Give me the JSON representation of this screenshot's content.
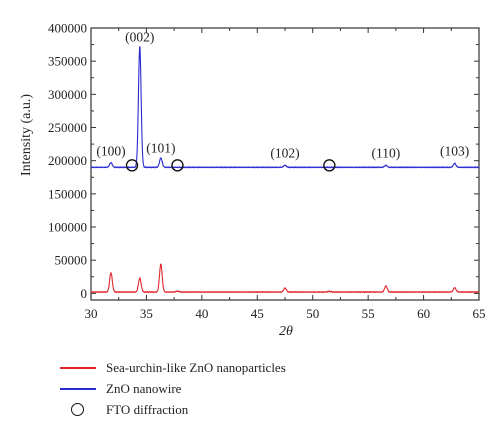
{
  "colors": {
    "red_series": "#e0262b",
    "blue_series": "#2a2ad0",
    "frame": "#333333",
    "marker": "#111111"
  },
  "chart_data": {
    "type": "line",
    "xlabel": "2θ",
    "ylabel": "Intensity (a.u.)",
    "xlim": [
      30,
      65
    ],
    "ylim": [
      -10000,
      400000
    ],
    "x_ticks": [
      30,
      35,
      40,
      45,
      50,
      55,
      60,
      65
    ],
    "y_ticks": [
      0,
      50000,
      100000,
      150000,
      200000,
      250000,
      300000,
      350000,
      400000
    ],
    "grid": false,
    "series": [
      {
        "name": "Sea-urchin-like ZnO nanoparticles",
        "color": "#e0262b",
        "baseline": 2000,
        "peaks": [
          {
            "x": 31.8,
            "y": 31000
          },
          {
            "x": 34.4,
            "y": 23000
          },
          {
            "x": 36.3,
            "y": 44000
          },
          {
            "x": 37.8,
            "y": 3500
          },
          {
            "x": 47.5,
            "y": 8000
          },
          {
            "x": 51.5,
            "y": 3200
          },
          {
            "x": 56.6,
            "y": 11000
          },
          {
            "x": 62.8,
            "y": 8500
          }
        ]
      },
      {
        "name": "ZnO nanowire",
        "color": "#2a2ad0",
        "baseline": 190000,
        "peaks": [
          {
            "x": 31.8,
            "y": 197000
          },
          {
            "x": 34.4,
            "y": 372000
          },
          {
            "x": 36.3,
            "y": 204000
          },
          {
            "x": 47.5,
            "y": 193000
          },
          {
            "x": 56.6,
            "y": 193000
          },
          {
            "x": 62.8,
            "y": 196000
          }
        ]
      }
    ],
    "annotations": [
      {
        "text": "(100)",
        "x": 31.8,
        "y": 208000
      },
      {
        "text": "(002)",
        "x": 34.4,
        "y": 380000
      },
      {
        "text": "(101)",
        "x": 36.3,
        "y": 212000
      },
      {
        "text": "(102)",
        "x": 47.5,
        "y": 205000
      },
      {
        "text": "(110)",
        "x": 56.6,
        "y": 205000
      },
      {
        "text": "(103)",
        "x": 62.8,
        "y": 208000
      }
    ],
    "fto_markers": [
      {
        "x": 33.7,
        "y": 193000
      },
      {
        "x": 37.8,
        "y": 193000
      },
      {
        "x": 51.5,
        "y": 193000
      }
    ],
    "legend": {
      "placement": "bottom",
      "entries": [
        {
          "label": "Sea-urchin-like ZnO nanoparticles",
          "symbol": "line",
          "color": "#e0262b"
        },
        {
          "label": "ZnO nanowire",
          "symbol": "line",
          "color": "#2a2ad0"
        },
        {
          "label": "FTO diffraction",
          "symbol": "circle",
          "color": "#111111"
        }
      ]
    }
  }
}
